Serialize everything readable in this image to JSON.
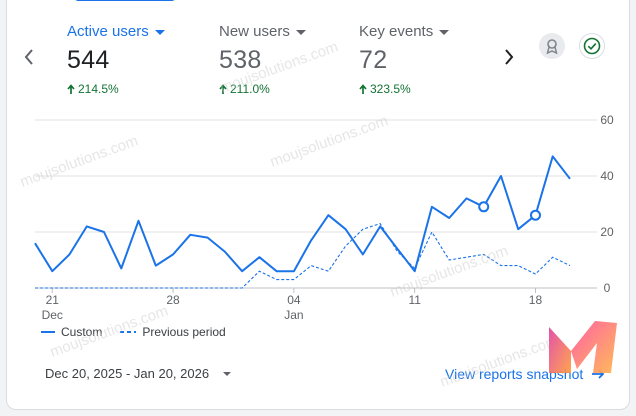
{
  "metrics": [
    {
      "label": "Active users",
      "value": "544",
      "change": "214.5%"
    },
    {
      "label": "New users",
      "value": "538",
      "change": "211.0%"
    },
    {
      "label": "Key events",
      "value": "72",
      "change": "323.5%"
    }
  ],
  "legend": {
    "custom": "Custom",
    "previous": "Previous period"
  },
  "date_range": "Dec 20, 2025 - Jan 20, 2026",
  "view_reports_label": "View reports snapshot",
  "watermark_text": "moujsolutions.com",
  "colors": {
    "accent": "#1a73e8",
    "positive": "#137333",
    "grid": "#e0e0e0"
  },
  "icons": {
    "prev": "chevron-left-icon",
    "next": "chevron-right-icon",
    "badge": "ribbon-badge-icon",
    "check": "check-circle-icon",
    "arrow": "arrow-right-icon"
  },
  "chart_data": {
    "type": "line",
    "ylim": [
      0,
      60
    ],
    "y_ticks": [
      "0",
      "20",
      "40",
      "60"
    ],
    "x_ticks": [
      {
        "day": 1,
        "label": "21",
        "sub": "Dec"
      },
      {
        "day": 8,
        "label": "28",
        "sub": ""
      },
      {
        "day": 15,
        "label": "04",
        "sub": "Jan"
      },
      {
        "day": 22,
        "label": "11",
        "sub": ""
      },
      {
        "day": 29,
        "label": "18",
        "sub": ""
      }
    ],
    "series": [
      {
        "name": "Custom",
        "style": "solid",
        "values": [
          16,
          6,
          12,
          22,
          20,
          7,
          24,
          8,
          12,
          19,
          18,
          13,
          6,
          11,
          6,
          6,
          17,
          26,
          21,
          12,
          22,
          14,
          6,
          29,
          25,
          32,
          29,
          40,
          21,
          26,
          47,
          39
        ],
        "markers": [
          26,
          29
        ]
      },
      {
        "name": "Previous period",
        "style": "dashed",
        "values": [
          0,
          0,
          0,
          0,
          0,
          0,
          0,
          0,
          0,
          0,
          0,
          0,
          0,
          6,
          3,
          3,
          8,
          6,
          15,
          21,
          23,
          13,
          7,
          20,
          10,
          11,
          12,
          8,
          8,
          5,
          11,
          8
        ]
      }
    ]
  }
}
